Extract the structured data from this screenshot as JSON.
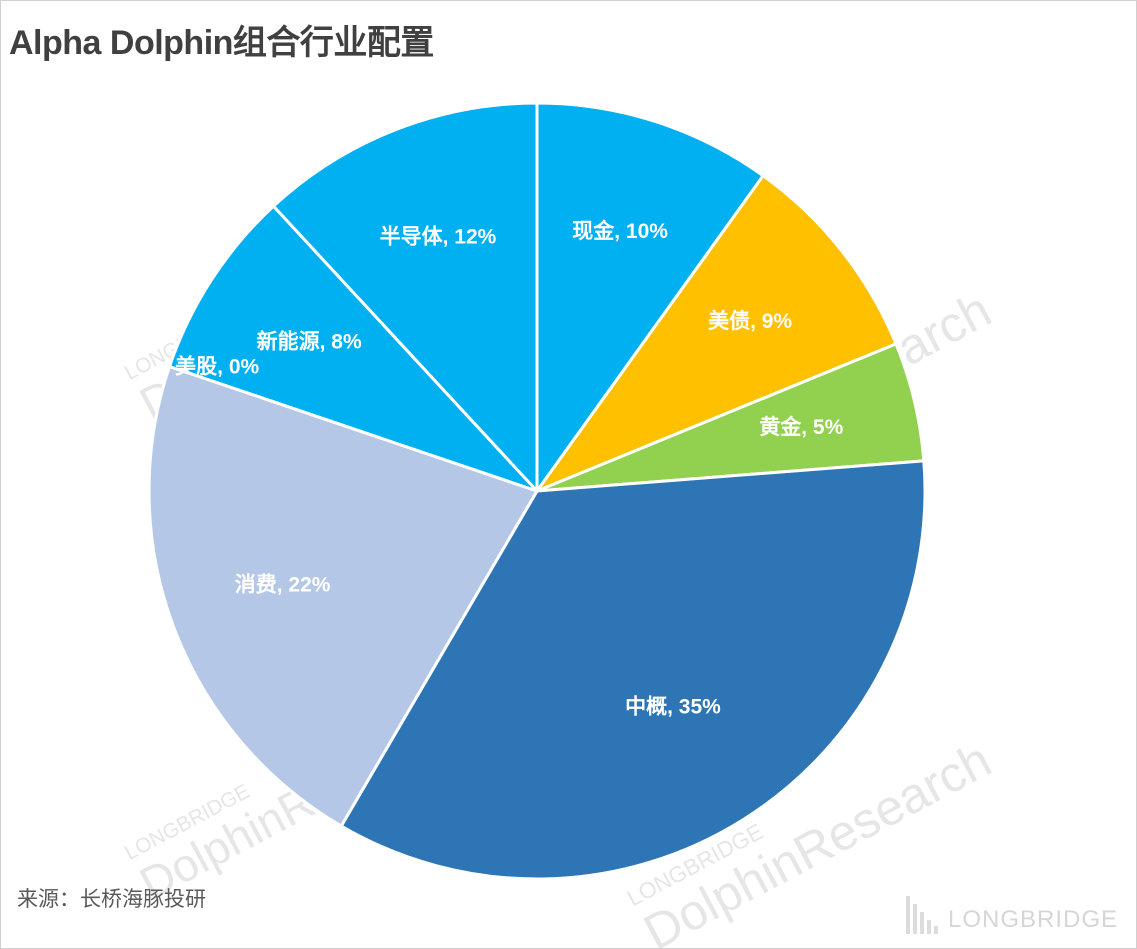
{
  "title": "Alpha Dolphin组合行业配置",
  "source": "来源：长桥海豚投研",
  "watermark": {
    "brand": "LONGBRIDGE",
    "product": "DolphinResearch"
  },
  "colors": {
    "slice_border": "#ffffff",
    "label_text": "#ffffff",
    "dark_label_text": "#ffffff"
  },
  "chart_data": {
    "type": "pie",
    "title": "Alpha Dolphin组合行业配置",
    "start_angle_deg": 0,
    "direction": "clockwise",
    "slices": [
      {
        "name": "现金",
        "value": 10,
        "label": "现金, 10%",
        "color": "#00B0F0"
      },
      {
        "name": "美债",
        "value": 9,
        "label": "美债, 9%",
        "color": "#FFC000"
      },
      {
        "name": "黄金",
        "value": 5,
        "label": "黄金, 5%",
        "color": "#92D050"
      },
      {
        "name": "中概",
        "value": 35,
        "label": "中概, 35%",
        "color": "#2E75B6"
      },
      {
        "name": "消费",
        "value": 22,
        "label": "消费, 22%",
        "color": "#B4C7E7"
      },
      {
        "name": "美股",
        "value": 0,
        "label": "美股, 0%",
        "color": "#00B0F0"
      },
      {
        "name": "新能源",
        "value": 8,
        "label": "新能源, 8%",
        "color": "#00B0F0"
      },
      {
        "name": "半导体",
        "value": 12,
        "label": "半导体, 12%",
        "color": "#00B0F0"
      }
    ]
  }
}
